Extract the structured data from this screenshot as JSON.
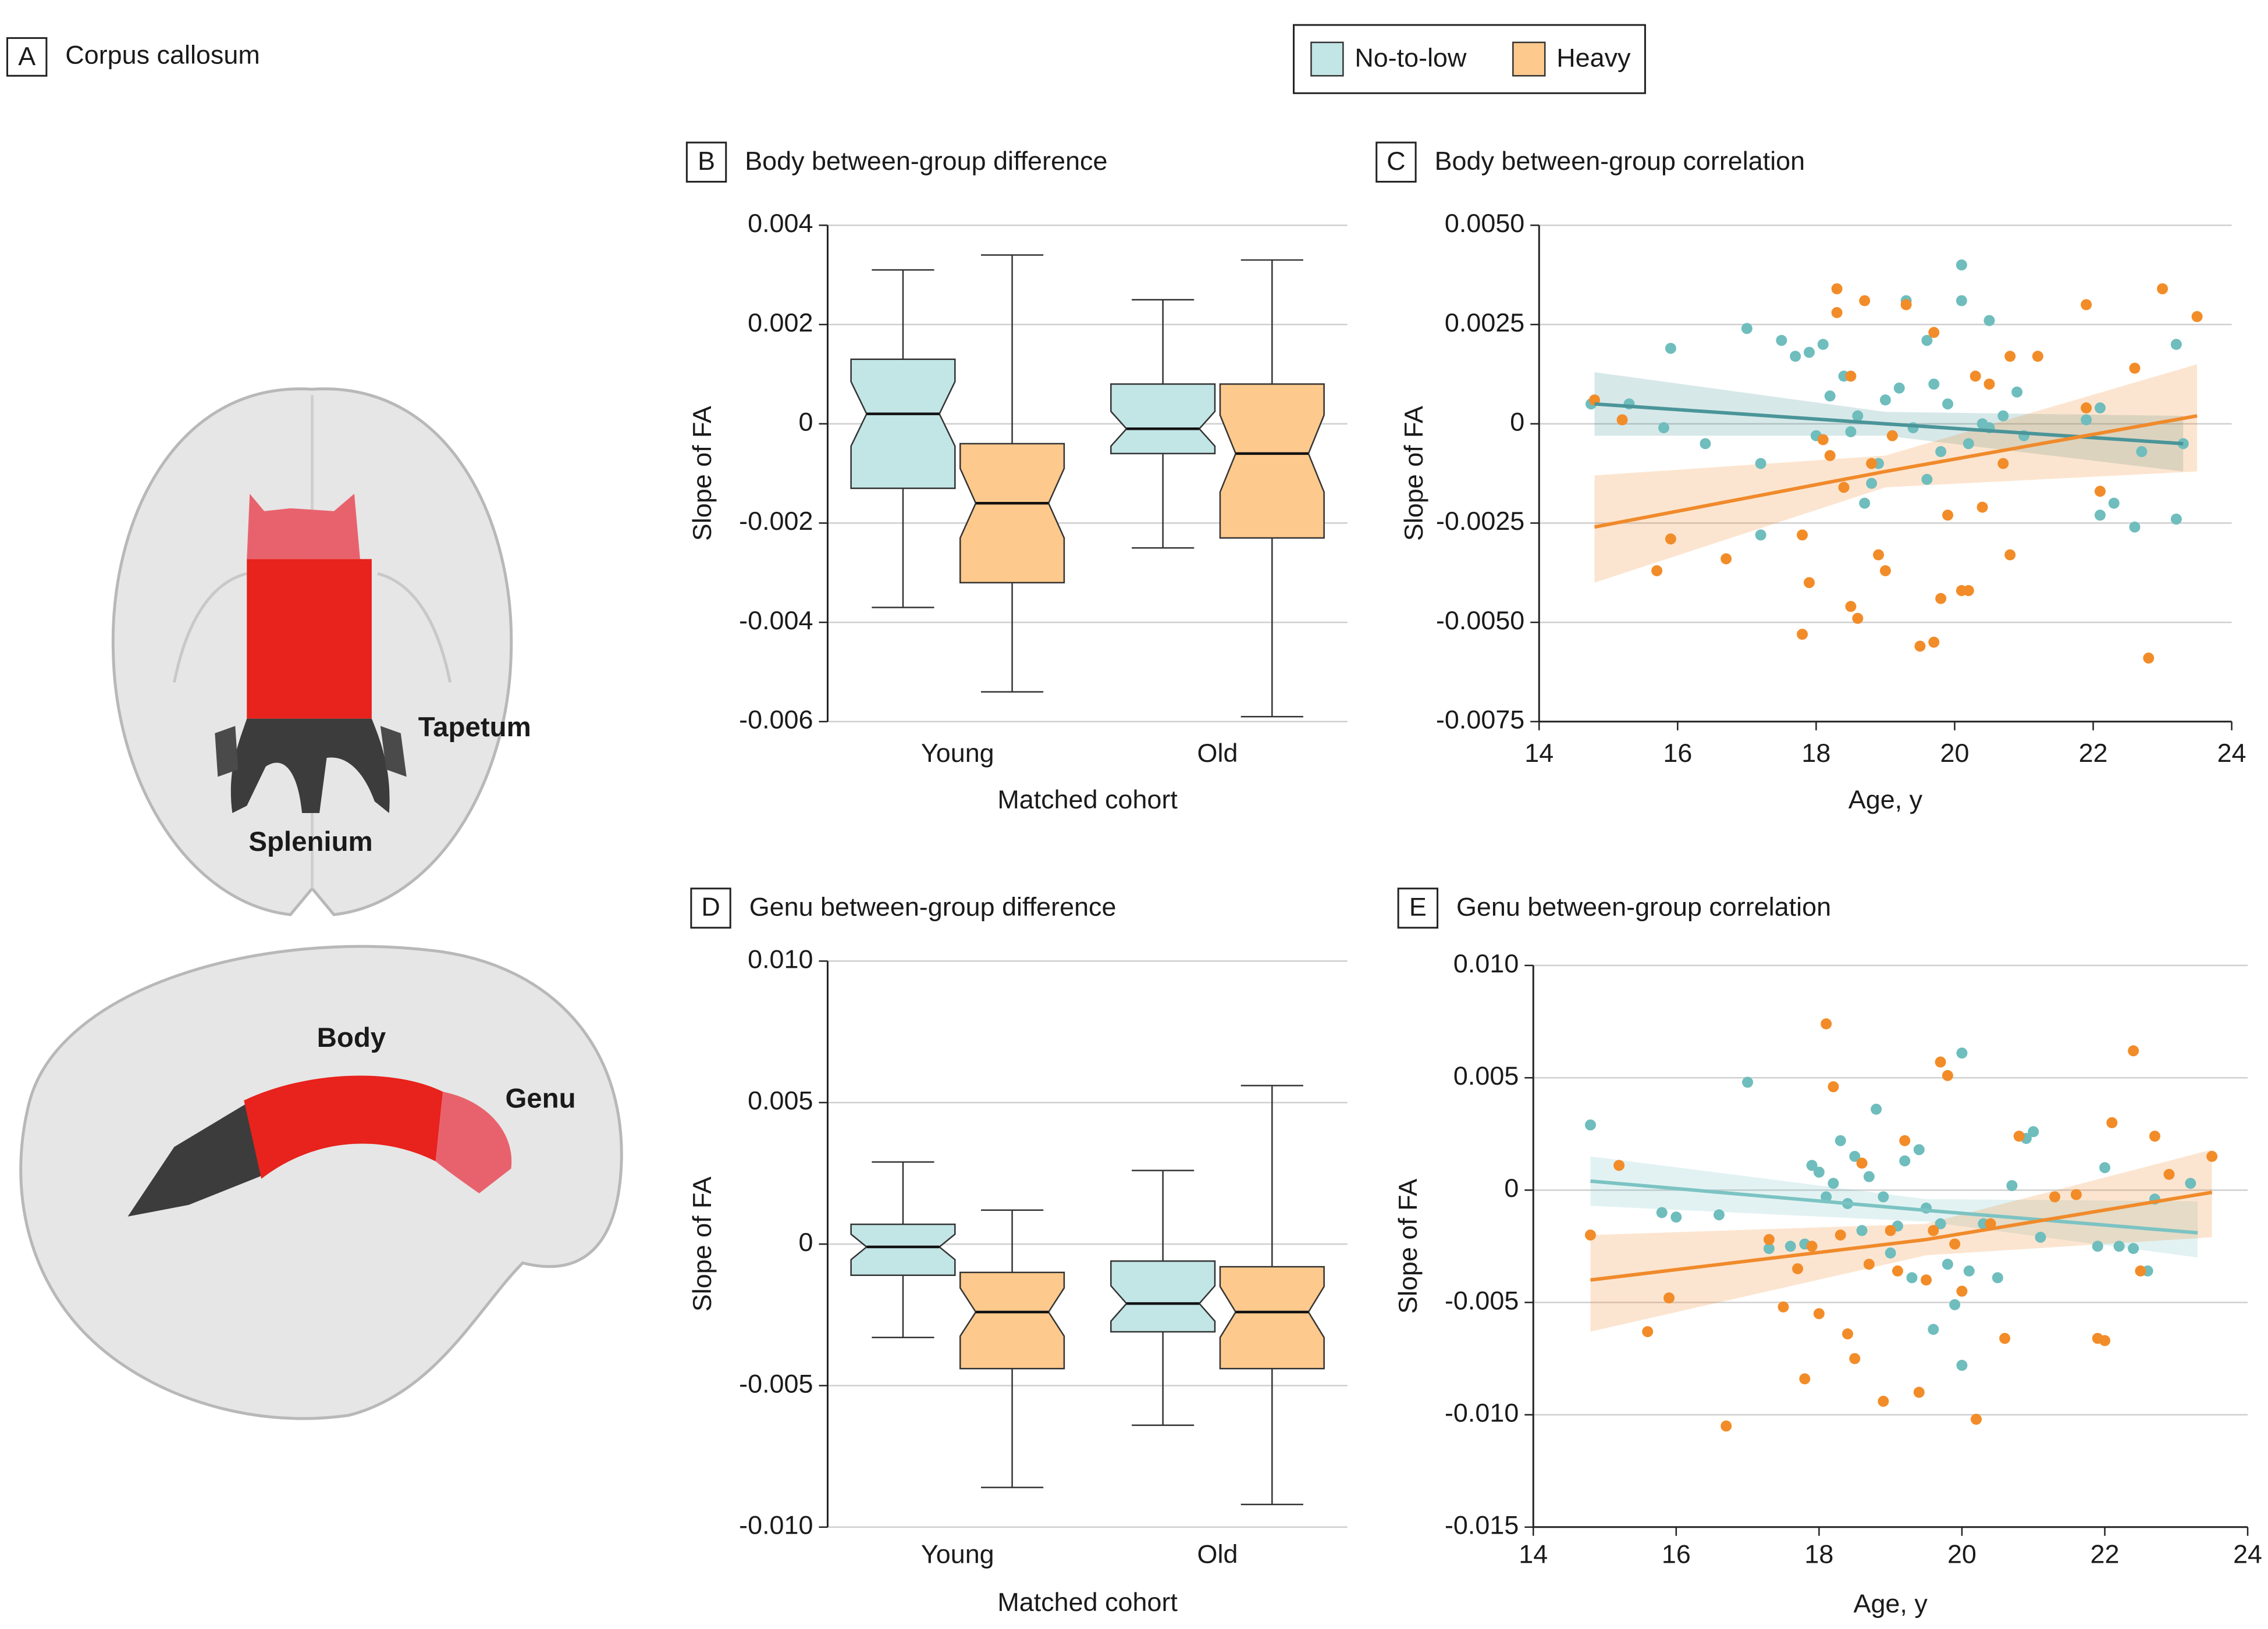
{
  "panel_a": {
    "letter": "A",
    "title": "Corpus callosum",
    "labels": [
      "Tapetum",
      "Splenium",
      "Body",
      "Genu"
    ]
  },
  "chart_data": [
    {
      "type": "box",
      "letter": "B",
      "title": "Body between-group difference",
      "x_label": "Matched cohort",
      "y_label": "Slope of FA",
      "categories": [
        "Young",
        "Old"
      ],
      "ylim": [
        -0.006,
        0.004
      ],
      "yticks": [
        -0.006,
        -0.004,
        -0.002,
        0,
        0.002,
        0.004
      ],
      "grid": true,
      "series": [
        {
          "name": "No-to-low",
          "color": "#c2e5e5",
          "boxes": [
            {
              "min": -0.0037,
              "q1": -0.0013,
              "median": 0.0002,
              "q3": 0.0013,
              "max": 0.0031
            },
            {
              "min": -0.0025,
              "q1": -0.0006,
              "median": -0.0001,
              "q3": 0.0008,
              "max": 0.0025
            }
          ]
        },
        {
          "name": "Heavy",
          "color": "#fdc98c",
          "boxes": [
            {
              "min": -0.0054,
              "q1": -0.0032,
              "median": -0.0016,
              "q3": -0.0004,
              "max": 0.0034
            },
            {
              "min": -0.0059,
              "q1": -0.0023,
              "median": -0.0006,
              "q3": 0.0008,
              "max": 0.0033
            }
          ]
        }
      ]
    },
    {
      "type": "scatter",
      "letter": "C",
      "title": "Body between-group correlation",
      "x_label": "Age, y",
      "y_label": "Slope of FA",
      "xlim": [
        14,
        24
      ],
      "xticks": [
        14,
        16,
        18,
        20,
        22,
        24
      ],
      "ylim": [
        -0.0075,
        0.005
      ],
      "yticks": [
        -0.0075,
        {
          "value": -0.005,
          "label": "-0.0050"
        },
        -0.0025,
        0,
        0.0025,
        {
          "value": 0.005,
          "label": "0.0050"
        }
      ],
      "grid": true,
      "series": [
        {
          "name": "No-to-low",
          "color": "#6fbdbd",
          "line_color": "#4a9599",
          "x": [
            14.75,
            15.3,
            15.9,
            15.8,
            16.4,
            17.0,
            17.2,
            17.2,
            17.5,
            17.7,
            17.9,
            18.0,
            18.1,
            18.2,
            18.4,
            18.5,
            18.6,
            18.7,
            18.8,
            18.9,
            19.0,
            19.2,
            19.3,
            19.4,
            19.6,
            19.7,
            19.8,
            19.9,
            20.1,
            20.1,
            20.2,
            20.4,
            20.5,
            20.5,
            20.7,
            20.9,
            21.0,
            21.9,
            22.1,
            22.3,
            22.6,
            22.7,
            23.2,
            23.2,
            23.3,
            22.1,
            19.6
          ],
          "values": [
            0.0005,
            0.0005,
            0.0019,
            -0.0001,
            -0.0005,
            0.0024,
            -0.001,
            -0.0028,
            0.0021,
            0.0017,
            0.0018,
            -0.0003,
            0.002,
            0.0007,
            0.0012,
            -0.0002,
            0.0002,
            -0.002,
            -0.0015,
            -0.001,
            0.0006,
            0.0009,
            0.0031,
            -0.0001,
            -0.0014,
            0.001,
            -0.0007,
            0.0005,
            0.004,
            0.0031,
            -0.0005,
            0,
            0.0026,
            -0.0001,
            0.0002,
            0.0008,
            -0.0003,
            0.0001,
            -0.0023,
            -0.002,
            -0.0026,
            -0.0007,
            -0.0024,
            0.002,
            -0.0005,
            0.0004,
            0.0021
          ],
          "fit": {
            "x": [
              14.8,
              19,
              23.3
            ],
            "values": [
              0.0005,
              0,
              -0.0005
            ],
            "lower": [
              -0.0003,
              -0.0003,
              -0.0012
            ],
            "upper": [
              0.0013,
              0.0003,
              0.0002
            ]
          }
        },
        {
          "name": "Heavy",
          "color": "#f28c28",
          "line_color": "#f08a2b",
          "x": [
            14.8,
            15.2,
            15.7,
            15.9,
            16.7,
            17.8,
            17.8,
            17.9,
            18.1,
            18.2,
            18.3,
            18.3,
            18.4,
            18.5,
            18.5,
            18.6,
            18.7,
            18.8,
            18.9,
            19.0,
            19.1,
            19.3,
            19.5,
            19.7,
            19.7,
            19.8,
            19.9,
            20.1,
            20.2,
            20.3,
            20.4,
            20.5,
            20.7,
            20.8,
            20.8,
            21.2,
            21.9,
            22.1,
            22.6,
            22.8,
            23.0,
            23.5,
            21.9
          ],
          "values": [
            0.0006,
            0.0001,
            -0.0037,
            -0.0029,
            -0.0034,
            -0.0053,
            -0.0028,
            -0.004,
            -0.0004,
            -0.0008,
            0.0028,
            0.0034,
            -0.0016,
            0.0012,
            -0.0046,
            -0.0049,
            0.0031,
            -0.001,
            -0.0033,
            -0.0037,
            -0.0003,
            0.003,
            -0.0056,
            -0.0055,
            0.0023,
            -0.0044,
            -0.0023,
            -0.0042,
            -0.0042,
            0.0012,
            -0.0021,
            0.001,
            -0.001,
            0.0017,
            -0.0033,
            0.0017,
            0.003,
            -0.0017,
            0.0014,
            -0.0059,
            0.0034,
            0.0027,
            0.0004
          ],
          "fit": {
            "x": [
              14.8,
              19,
              23.5
            ],
            "values": [
              -0.0026,
              -0.0012,
              0.0002
            ],
            "lower": [
              -0.004,
              -0.0016,
              -0.0012
            ],
            "upper": [
              -0.0013,
              -0.0008,
              0.0015
            ]
          }
        }
      ]
    },
    {
      "type": "box",
      "letter": "D",
      "title": "Genu between-group difference",
      "x_label": "Matched cohort",
      "y_label": "Slope of FA",
      "categories": [
        "Young",
        "Old"
      ],
      "ylim": [
        -0.01,
        0.01
      ],
      "yticks": [
        {
          "value": -0.01,
          "label": "-0.010"
        },
        -0.005,
        0,
        0.005,
        {
          "value": 0.01,
          "label": "0.010"
        }
      ],
      "grid": true,
      "series": [
        {
          "name": "No-to-low",
          "color": "#c2e5e5",
          "boxes": [
            {
              "min": -0.0033,
              "q1": -0.0011,
              "median": -0.0001,
              "q3": 0.0007,
              "max": 0.0029
            },
            {
              "min": -0.0064,
              "q1": -0.0031,
              "median": -0.0021,
              "q3": -0.0006,
              "max": 0.0026
            }
          ]
        },
        {
          "name": "Heavy",
          "color": "#fdc98c",
          "boxes": [
            {
              "min": -0.0086,
              "q1": -0.0044,
              "median": -0.0024,
              "q3": -0.001,
              "max": 0.0012
            },
            {
              "min": -0.0092,
              "q1": -0.0044,
              "median": -0.0024,
              "q3": -0.0008,
              "max": 0.0056
            }
          ]
        }
      ]
    },
    {
      "type": "scatter",
      "letter": "E",
      "title": "Genu between-group correlation",
      "x_label": "Age, y",
      "y_label": "Slope of FA",
      "xlim": [
        14,
        24
      ],
      "xticks": [
        14,
        16,
        18,
        20,
        22,
        24
      ],
      "ylim": [
        -0.015,
        0.01
      ],
      "yticks": [
        -0.015,
        {
          "value": -0.01,
          "label": "-0.010"
        },
        -0.005,
        0,
        0.005,
        {
          "value": 0.01,
          "label": "0.010"
        }
      ],
      "grid": true,
      "series": [
        {
          "name": "No-to-low",
          "color": "#6fbdbd",
          "line_color": "#7cc3c3",
          "x": [
            14.8,
            15.8,
            16.0,
            16.6,
            17.0,
            17.3,
            17.6,
            17.8,
            17.9,
            18.0,
            18.1,
            18.2,
            18.3,
            18.4,
            18.5,
            18.6,
            18.7,
            18.8,
            18.9,
            19.0,
            19.1,
            19.2,
            19.3,
            19.4,
            19.5,
            19.6,
            19.7,
            19.8,
            19.9,
            20.0,
            20.0,
            20.1,
            20.3,
            20.5,
            20.7,
            20.9,
            21.0,
            21.1,
            21.9,
            22.0,
            22.2,
            22.4,
            22.6,
            23.2,
            22.7
          ],
          "values": [
            0.0029,
            -0.001,
            -0.0012,
            -0.0011,
            0.0048,
            -0.0026,
            -0.0025,
            -0.0024,
            0.0011,
            0.0008,
            -0.0003,
            0.0003,
            0.0022,
            -0.0006,
            0.0015,
            -0.0018,
            0.0006,
            0.0036,
            -0.0003,
            -0.0028,
            -0.0016,
            0.0013,
            -0.0039,
            0.0018,
            -0.0008,
            -0.0062,
            -0.0015,
            -0.0033,
            -0.0051,
            0.0061,
            -0.0078,
            -0.0036,
            -0.0015,
            -0.0039,
            0.0002,
            0.0023,
            0.0026,
            -0.0021,
            -0.0025,
            0.001,
            -0.0025,
            -0.0026,
            -0.0036,
            0.0003,
            -0.0004
          ],
          "fit": {
            "x": [
              14.8,
              19.5,
              23.3
            ],
            "values": [
              0.0004,
              -0.0009,
              -0.0019
            ],
            "lower": [
              -0.0007,
              -0.0014,
              -0.003
            ],
            "upper": [
              0.0015,
              -0.0004,
              -0.0005
            ]
          }
        },
        {
          "name": "Heavy",
          "color": "#f28c28",
          "line_color": "#f08a2b",
          "x": [
            14.8,
            15.2,
            15.6,
            15.9,
            16.7,
            17.3,
            17.5,
            17.7,
            17.8,
            17.9,
            18.0,
            18.1,
            18.2,
            18.3,
            18.4,
            18.5,
            18.6,
            18.7,
            18.9,
            19.0,
            19.1,
            19.2,
            19.4,
            19.5,
            19.6,
            19.7,
            19.8,
            19.9,
            20.0,
            20.2,
            20.4,
            20.6,
            20.8,
            21.3,
            21.9,
            22.1,
            22.4,
            22.5,
            22.7,
            22.9,
            23.5,
            21.6,
            22.0
          ],
          "values": [
            -0.002,
            0.0011,
            -0.0063,
            -0.0048,
            -0.0105,
            -0.0022,
            -0.0052,
            -0.0035,
            -0.0084,
            -0.0025,
            -0.0055,
            0.0074,
            0.0046,
            -0.002,
            -0.0064,
            -0.0075,
            0.0012,
            -0.0033,
            -0.0094,
            -0.0018,
            -0.0036,
            0.0022,
            -0.009,
            -0.004,
            -0.0018,
            0.0057,
            0.0051,
            -0.0024,
            -0.0045,
            -0.0102,
            -0.0015,
            -0.0066,
            0.0024,
            -0.0003,
            -0.0066,
            0.003,
            0.0062,
            -0.0036,
            0.0024,
            0.0007,
            0.0015,
            -0.0002,
            -0.0067
          ],
          "fit": {
            "x": [
              14.8,
              19.5,
              23.5
            ],
            "values": [
              -0.004,
              -0.0022,
              -0.0001
            ],
            "lower": [
              -0.0063,
              -0.0029,
              -0.0021
            ],
            "upper": [
              -0.002,
              -0.0015,
              0.0018
            ]
          }
        }
      ]
    }
  ]
}
